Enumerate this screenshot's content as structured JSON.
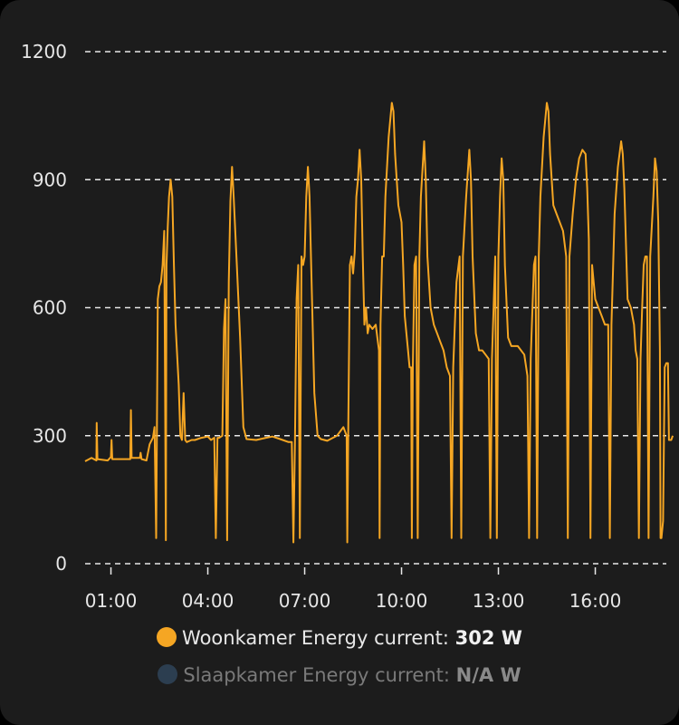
{
  "chart_data": {
    "type": "line",
    "y_ticks": [
      "0",
      "300",
      "600",
      "900",
      "1200"
    ],
    "x_ticks": [
      "01:00",
      "04:00",
      "07:00",
      "10:00",
      "13:00",
      "16:00"
    ],
    "ylim": [
      0,
      1200
    ],
    "x_unit": "hours",
    "xlim": [
      0.2,
      18.2
    ],
    "grid": true,
    "legend_position": "bottom",
    "series": [
      {
        "name": "Woonkamer Energy current",
        "value": "302 W",
        "color": "#f5a623",
        "points": [
          [
            0.2,
            240
          ],
          [
            0.4,
            248
          ],
          [
            0.55,
            242
          ],
          [
            0.56,
            330
          ],
          [
            0.58,
            245
          ],
          [
            0.9,
            242
          ],
          [
            1.0,
            250
          ],
          [
            1.02,
            290
          ],
          [
            1.04,
            245
          ],
          [
            1.6,
            245
          ],
          [
            1.62,
            360
          ],
          [
            1.64,
            248
          ],
          [
            1.9,
            248
          ],
          [
            1.92,
            260
          ],
          [
            1.95,
            245
          ],
          [
            2.1,
            242
          ],
          [
            2.2,
            280
          ],
          [
            2.3,
            295
          ],
          [
            2.35,
            320
          ],
          [
            2.4,
            60
          ],
          [
            2.45,
            620
          ],
          [
            2.5,
            650
          ],
          [
            2.55,
            660
          ],
          [
            2.6,
            700
          ],
          [
            2.65,
            780
          ],
          [
            2.7,
            55
          ],
          [
            2.72,
            700
          ],
          [
            2.76,
            790
          ],
          [
            2.8,
            860
          ],
          [
            2.85,
            900
          ],
          [
            2.9,
            860
          ],
          [
            2.95,
            700
          ],
          [
            3.0,
            560
          ],
          [
            3.1,
            420
          ],
          [
            3.15,
            300
          ],
          [
            3.2,
            290
          ],
          [
            3.25,
            400
          ],
          [
            3.3,
            290
          ],
          [
            3.35,
            285
          ],
          [
            3.5,
            290
          ],
          [
            3.6,
            290
          ],
          [
            3.8,
            295
          ],
          [
            4.0,
            298
          ],
          [
            4.1,
            290
          ],
          [
            4.2,
            295
          ],
          [
            4.25,
            60
          ],
          [
            4.3,
            295
          ],
          [
            4.35,
            295
          ],
          [
            4.45,
            300
          ],
          [
            4.5,
            550
          ],
          [
            4.55,
            620
          ],
          [
            4.6,
            55
          ],
          [
            4.65,
            660
          ],
          [
            4.7,
            850
          ],
          [
            4.75,
            930
          ],
          [
            4.8,
            860
          ],
          [
            4.9,
            700
          ],
          [
            5.0,
            530
          ],
          [
            5.1,
            320
          ],
          [
            5.2,
            292
          ],
          [
            5.5,
            290
          ],
          [
            5.8,
            295
          ],
          [
            6.0,
            298
          ],
          [
            6.2,
            293
          ],
          [
            6.5,
            285
          ],
          [
            6.6,
            285
          ],
          [
            6.65,
            50
          ],
          [
            6.7,
            285
          ],
          [
            6.75,
            620
          ],
          [
            6.8,
            700
          ],
          [
            6.85,
            60
          ],
          [
            6.9,
            720
          ],
          [
            6.95,
            700
          ],
          [
            7.0,
            720
          ],
          [
            7.05,
            860
          ],
          [
            7.1,
            930
          ],
          [
            7.15,
            860
          ],
          [
            7.2,
            700
          ],
          [
            7.3,
            400
          ],
          [
            7.4,
            300
          ],
          [
            7.5,
            292
          ],
          [
            7.7,
            288
          ],
          [
            8.0,
            300
          ],
          [
            8.1,
            310
          ],
          [
            8.2,
            320
          ],
          [
            8.3,
            300
          ],
          [
            8.32,
            50
          ],
          [
            8.35,
            320
          ],
          [
            8.4,
            700
          ],
          [
            8.45,
            720
          ],
          [
            8.5,
            680
          ],
          [
            8.55,
            730
          ],
          [
            8.6,
            860
          ],
          [
            8.65,
            900
          ],
          [
            8.7,
            970
          ],
          [
            8.75,
            900
          ],
          [
            8.8,
            720
          ],
          [
            8.85,
            560
          ],
          [
            8.9,
            600
          ],
          [
            8.95,
            540
          ],
          [
            9.0,
            560
          ],
          [
            9.1,
            550
          ],
          [
            9.2,
            560
          ],
          [
            9.3,
            500
          ],
          [
            9.32,
            60
          ],
          [
            9.35,
            560
          ],
          [
            9.4,
            720
          ],
          [
            9.45,
            720
          ],
          [
            9.5,
            860
          ],
          [
            9.6,
            1000
          ],
          [
            9.7,
            1080
          ],
          [
            9.75,
            1060
          ],
          [
            9.8,
            960
          ],
          [
            9.9,
            840
          ],
          [
            10.0,
            800
          ],
          [
            10.05,
            700
          ],
          [
            10.1,
            580
          ],
          [
            10.2,
            500
          ],
          [
            10.25,
            460
          ],
          [
            10.3,
            460
          ],
          [
            10.32,
            60
          ],
          [
            10.35,
            460
          ],
          [
            10.4,
            700
          ],
          [
            10.45,
            720
          ],
          [
            10.5,
            60
          ],
          [
            10.55,
            720
          ],
          [
            10.6,
            860
          ],
          [
            10.7,
            990
          ],
          [
            10.75,
            900
          ],
          [
            10.8,
            720
          ],
          [
            10.9,
            600
          ],
          [
            11.0,
            560
          ],
          [
            11.1,
            540
          ],
          [
            11.2,
            520
          ],
          [
            11.3,
            500
          ],
          [
            11.4,
            460
          ],
          [
            11.5,
            440
          ],
          [
            11.55,
            60
          ],
          [
            11.6,
            460
          ],
          [
            11.7,
            660
          ],
          [
            11.8,
            720
          ],
          [
            11.85,
            60
          ],
          [
            11.9,
            720
          ],
          [
            12.0,
            860
          ],
          [
            12.1,
            970
          ],
          [
            12.15,
            900
          ],
          [
            12.2,
            720
          ],
          [
            12.3,
            540
          ],
          [
            12.4,
            500
          ],
          [
            12.5,
            500
          ],
          [
            12.6,
            490
          ],
          [
            12.7,
            480
          ],
          [
            12.75,
            60
          ],
          [
            12.8,
            480
          ],
          [
            12.9,
            720
          ],
          [
            12.95,
            60
          ],
          [
            13.0,
            720
          ],
          [
            13.05,
            860
          ],
          [
            13.1,
            950
          ],
          [
            13.15,
            900
          ],
          [
            13.2,
            700
          ],
          [
            13.3,
            530
          ],
          [
            13.4,
            510
          ],
          [
            13.6,
            510
          ],
          [
            13.8,
            490
          ],
          [
            13.9,
            440
          ],
          [
            13.95,
            60
          ],
          [
            14.0,
            480
          ],
          [
            14.1,
            700
          ],
          [
            14.15,
            720
          ],
          [
            14.2,
            60
          ],
          [
            14.25,
            720
          ],
          [
            14.3,
            860
          ],
          [
            14.4,
            1000
          ],
          [
            14.5,
            1080
          ],
          [
            14.55,
            1060
          ],
          [
            14.6,
            960
          ],
          [
            14.7,
            840
          ],
          [
            14.8,
            820
          ],
          [
            14.9,
            800
          ],
          [
            15.0,
            780
          ],
          [
            15.1,
            720
          ],
          [
            15.15,
            60
          ],
          [
            15.2,
            720
          ],
          [
            15.3,
            820
          ],
          [
            15.4,
            900
          ],
          [
            15.5,
            950
          ],
          [
            15.6,
            970
          ],
          [
            15.7,
            960
          ],
          [
            15.75,
            880
          ],
          [
            15.8,
            760
          ],
          [
            15.85,
            60
          ],
          [
            15.9,
            700
          ],
          [
            16.0,
            620
          ],
          [
            16.1,
            600
          ],
          [
            16.2,
            580
          ],
          [
            16.3,
            560
          ],
          [
            16.4,
            560
          ],
          [
            16.45,
            60
          ],
          [
            16.5,
            560
          ],
          [
            16.6,
            820
          ],
          [
            16.7,
            930
          ],
          [
            16.8,
            990
          ],
          [
            16.85,
            960
          ],
          [
            16.9,
            880
          ],
          [
            17.0,
            620
          ],
          [
            17.1,
            600
          ],
          [
            17.2,
            560
          ],
          [
            17.25,
            500
          ],
          [
            17.3,
            480
          ],
          [
            17.35,
            60
          ],
          [
            17.4,
            480
          ],
          [
            17.45,
            600
          ],
          [
            17.5,
            700
          ],
          [
            17.55,
            720
          ],
          [
            17.6,
            720
          ],
          [
            17.65,
            60
          ],
          [
            17.7,
            720
          ],
          [
            17.8,
            860
          ],
          [
            17.85,
            950
          ],
          [
            17.9,
            920
          ],
          [
            17.95,
            800
          ],
          [
            18.0,
            500
          ],
          [
            18.02,
            60
          ],
          [
            18.05,
            60
          ],
          [
            18.1,
            100
          ],
          [
            18.15,
            460
          ],
          [
            18.2,
            470
          ],
          [
            18.25,
            470
          ],
          [
            18.28,
            290
          ],
          [
            18.35,
            290
          ],
          [
            18.4,
            300
          ]
        ]
      },
      {
        "name": "Slaapkamer Energy current",
        "value": "N/A W",
        "color": "#2c3e50",
        "points": []
      }
    ]
  }
}
